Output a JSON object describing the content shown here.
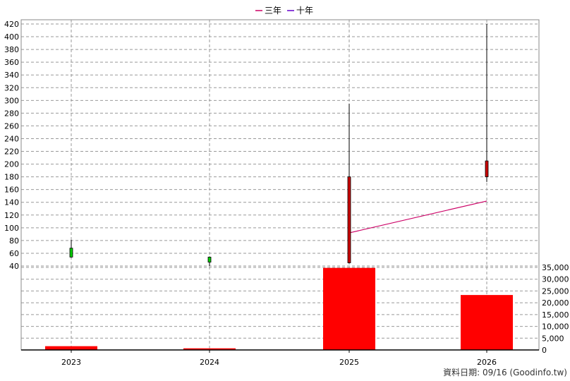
{
  "chart_data": {
    "type": "candlestick+line+bar",
    "legend": [
      {
        "label": "三年",
        "color": "#cc0066"
      },
      {
        "label": "十年",
        "color": "#6600cc"
      }
    ],
    "categories": [
      "2023",
      "2024",
      "2025",
      "2026"
    ],
    "price_axis": {
      "ticks": [
        40,
        60,
        80,
        100,
        120,
        140,
        160,
        180,
        200,
        220,
        240,
        260,
        280,
        300,
        320,
        340,
        360,
        380,
        400,
        420
      ],
      "range": [
        40,
        420
      ]
    },
    "volume_axis": {
      "ticks": [
        "0",
        "5,000",
        "10,000",
        "15,000",
        "20,000",
        "25,000",
        "30,000",
        "35,000"
      ],
      "range": [
        0,
        35000
      ]
    },
    "candles": [
      {
        "x": "2023",
        "open": 54,
        "close": 68,
        "high": 81,
        "low": 53,
        "color": "#00cc00"
      },
      {
        "x": "2024",
        "open": 46,
        "close": 54,
        "high": 55,
        "low": 40,
        "color": "#00cc00"
      },
      {
        "x": "2025",
        "open": 180,
        "close": 45,
        "high": 295,
        "low": 44,
        "color": "#cc0000"
      },
      {
        "x": "2026",
        "open": 205,
        "close": 180,
        "high": 420,
        "low": 172,
        "color": "#cc0000"
      }
    ],
    "three_year_line": [
      {
        "x": "2025",
        "y": 92
      },
      {
        "x": "2026",
        "y": 142
      }
    ],
    "volume": [
      {
        "x": "2023",
        "value": 1600
      },
      {
        "x": "2024",
        "value": 700
      },
      {
        "x": "2025",
        "value": 34800
      },
      {
        "x": "2026",
        "value": 23300
      }
    ],
    "colors": {
      "volume": "#ff0000",
      "grid": "#999999",
      "three_year": "#cc0066"
    }
  },
  "footer": "資料日期: 09/16  (Goodinfo.tw)"
}
